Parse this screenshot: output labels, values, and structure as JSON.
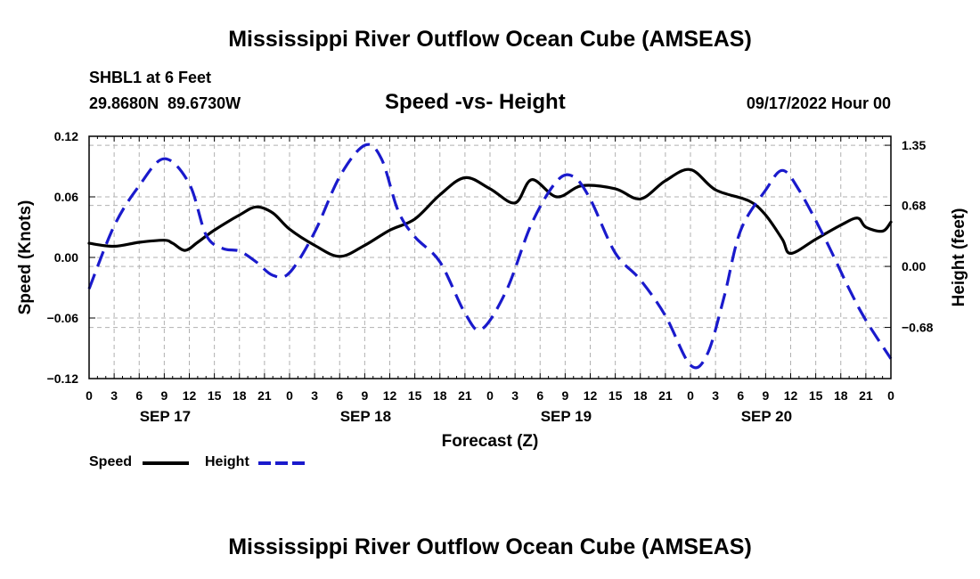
{
  "header": {
    "title": "Mississippi River Outflow Ocean Cube (AMSEAS)",
    "station": "SHBL1 at 6 Feet",
    "coords": "29.8680N  89.6730W",
    "plot_title": "Speed -vs- Height",
    "run_time": "09/17/2022 Hour 00",
    "footer_title": "Mississippi River Outflow Ocean Cube (AMSEAS)"
  },
  "legend": {
    "speed_label": "Speed",
    "height_label": "Height"
  },
  "colors": {
    "speed": "#000000",
    "height": "#1a1acc",
    "grid": "#b0b0b0"
  },
  "chart_data": {
    "type": "line",
    "title": "Speed -vs- Height",
    "xlabel": "Forecast (Z)",
    "ylabel": "Speed (Knots)",
    "y2label": "Height (feet)",
    "xlim": [
      0,
      96
    ],
    "ylim": [
      -0.12,
      0.12
    ],
    "y2lim": [
      -1.25,
      1.45
    ],
    "grid": true,
    "x_ticks": [
      0,
      3,
      6,
      9,
      12,
      15,
      18,
      21,
      24,
      27,
      30,
      33,
      36,
      39,
      42,
      45,
      48,
      51,
      54,
      57,
      60,
      63,
      66,
      69,
      72,
      75,
      78,
      81,
      84,
      87,
      90,
      93,
      96
    ],
    "x_tick_labels": [
      "0",
      "3",
      "6",
      "9",
      "12",
      "15",
      "18",
      "21",
      "0",
      "3",
      "6",
      "9",
      "12",
      "15",
      "18",
      "21",
      "0",
      "3",
      "6",
      "9",
      "12",
      "15",
      "18",
      "21",
      "0",
      "3",
      "6",
      "9",
      "12",
      "15",
      "18",
      "21",
      "0"
    ],
    "date_labels": [
      {
        "x": 9,
        "label": "SEP 17"
      },
      {
        "x": 33,
        "label": "SEP 18"
      },
      {
        "x": 57,
        "label": "SEP 19"
      },
      {
        "x": 81,
        "label": "SEP 20"
      }
    ],
    "y_ticks": [
      0.12,
      0.06,
      0.0,
      -0.06,
      -0.12
    ],
    "y_tick_labels": [
      "0.12",
      "0.06",
      "0.00",
      "−0.06",
      "−0.12"
    ],
    "y2_ticks": [
      1.35,
      0.68,
      0.0,
      -0.68
    ],
    "y2_tick_labels": [
      "1.35",
      "0.68",
      "0.00",
      "−0.68"
    ],
    "series": [
      {
        "name": "Speed",
        "axis": "left",
        "style": "solid",
        "points": [
          [
            0,
            0.014
          ],
          [
            3,
            0.011
          ],
          [
            6,
            0.015
          ],
          [
            9,
            0.017
          ],
          [
            10,
            0.014
          ],
          [
            11.5,
            0.007
          ],
          [
            13,
            0.015
          ],
          [
            15,
            0.027
          ],
          [
            18,
            0.042
          ],
          [
            20,
            0.05
          ],
          [
            22,
            0.044
          ],
          [
            24,
            0.028
          ],
          [
            27,
            0.012
          ],
          [
            30,
            0.001
          ],
          [
            33,
            0.012
          ],
          [
            36,
            0.027
          ],
          [
            39,
            0.038
          ],
          [
            42,
            0.062
          ],
          [
            45,
            0.079
          ],
          [
            48,
            0.068
          ],
          [
            51,
            0.054
          ],
          [
            53,
            0.077
          ],
          [
            56,
            0.06
          ],
          [
            59,
            0.071
          ],
          [
            63,
            0.068
          ],
          [
            66,
            0.058
          ],
          [
            69,
            0.076
          ],
          [
            72,
            0.087
          ],
          [
            75,
            0.067
          ],
          [
            79,
            0.056
          ],
          [
            81,
            0.042
          ],
          [
            83,
            0.018
          ],
          [
            84,
            0.004
          ],
          [
            87,
            0.018
          ],
          [
            90,
            0.032
          ],
          [
            92,
            0.039
          ],
          [
            93,
            0.03
          ],
          [
            95,
            0.026
          ],
          [
            96,
            0.035
          ]
        ]
      },
      {
        "name": "Height",
        "axis": "right",
        "style": "dashed",
        "points": [
          [
            0,
            -0.25
          ],
          [
            3,
            0.45
          ],
          [
            6,
            0.9
          ],
          [
            9,
            1.2
          ],
          [
            12,
            0.92
          ],
          [
            14,
            0.35
          ],
          [
            16,
            0.2
          ],
          [
            18,
            0.17
          ],
          [
            20,
            0.05
          ],
          [
            22,
            -0.1
          ],
          [
            24,
            -0.07
          ],
          [
            27,
            0.38
          ],
          [
            30,
            1.0
          ],
          [
            33,
            1.35
          ],
          [
            35,
            1.2
          ],
          [
            37,
            0.62
          ],
          [
            39,
            0.33
          ],
          [
            42,
            0.05
          ],
          [
            45,
            -0.52
          ],
          [
            47,
            -0.7
          ],
          [
            50,
            -0.26
          ],
          [
            53,
            0.48
          ],
          [
            56,
            0.95
          ],
          [
            58,
            1.0
          ],
          [
            60,
            0.75
          ],
          [
            63,
            0.15
          ],
          [
            66,
            -0.15
          ],
          [
            69,
            -0.55
          ],
          [
            72,
            -1.1
          ],
          [
            74,
            -0.98
          ],
          [
            76,
            -0.35
          ],
          [
            78,
            0.4
          ],
          [
            81,
            0.85
          ],
          [
            83,
            1.07
          ],
          [
            85,
            0.85
          ],
          [
            88,
            0.33
          ],
          [
            91,
            -0.25
          ],
          [
            93,
            -0.6
          ],
          [
            96,
            -1.03
          ]
        ]
      }
    ]
  }
}
